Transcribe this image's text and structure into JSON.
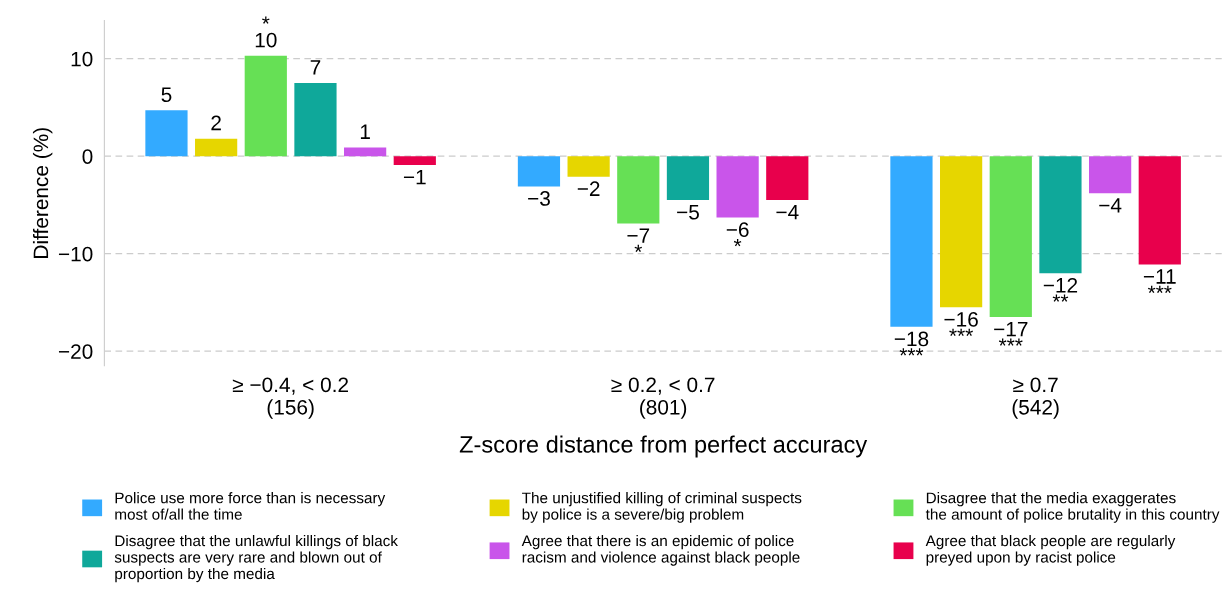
{
  "chart_data": {
    "type": "bar",
    "xlabel": "Z-score distance from perfect accuracy",
    "ylabel": "Difference (%)",
    "categories": [
      "≥ −0.4, < 0.2\n(156)",
      "≥ 0.2, < 0.7\n(801)",
      "≥ 0.7\n(542)"
    ],
    "series": [
      {
        "name": "Police use more force than is necessary\nmost of/all the time",
        "color": "#33aaff",
        "values": [
          4.7,
          -3.1,
          -17.5
        ],
        "value_labels": [
          "5",
          "−3",
          "−18\n***"
        ]
      },
      {
        "name": "The unjustified killing of criminal suspects\nby police is a severe/big problem",
        "color": "#e6d600",
        "values": [
          1.8,
          -2.1,
          -15.5
        ],
        "value_labels": [
          "2",
          "−2",
          "−16\n***"
        ]
      },
      {
        "name": "Disagree that the media exaggerates\nthe amount of police brutality in this country",
        "color": "#66e055",
        "values": [
          10.3,
          -6.9,
          -16.5
        ],
        "value_labels": [
          "*\n10",
          "−7\n*",
          "−17\n***"
        ]
      },
      {
        "name": "Disagree that the unlawful killings of black\nsuspects are very rare and blown out of\nproportion by the media",
        "color": "#0fa89a",
        "values": [
          7.5,
          -4.5,
          -12.0
        ],
        "value_labels": [
          "7",
          "−5",
          "−12\n**"
        ]
      },
      {
        "name": "Agree that there is an epidemic of police\nracism and violence against black people",
        "color": "#c955ea",
        "values": [
          0.9,
          -6.3,
          -3.8
        ],
        "value_labels": [
          "1",
          "−6\n*",
          "−4"
        ]
      },
      {
        "name": "Agree that black people are regularly\npreyed upon by racist police",
        "color": "#e8004c",
        "values": [
          -0.9,
          -4.5,
          -11.1
        ],
        "value_labels": [
          "−1",
          "−4",
          "−11\n***"
        ]
      }
    ],
    "ylim": [
      -21.5,
      13.9
    ],
    "yticks": [
      {
        "value": -20,
        "label": "−20"
      },
      {
        "value": -10,
        "label": "−10"
      },
      0,
      10
    ],
    "grid": "y",
    "legend": "bottom"
  }
}
